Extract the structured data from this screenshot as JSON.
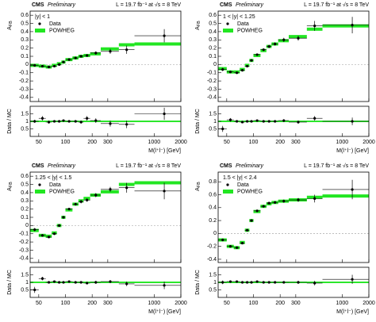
{
  "chart_data": [
    {
      "type": "afb",
      "header_bold": "CMS",
      "header_italic": "Preliminary",
      "lumi": "L = 19.7 fb⁻¹ at √s = 8 TeV",
      "region": "|y| < 1",
      "ylabel": [
        "A",
        "FB"
      ],
      "ratio_ylabel": "Data / MC",
      "xlabel": "M(l⁺l⁻) [GeV]",
      "log_x": true,
      "xlim": [
        40,
        2000
      ],
      "xticks": [
        50,
        100,
        200,
        300,
        1000,
        2000
      ],
      "ylim": [
        -0.45,
        0.65
      ],
      "yticks": [
        -0.4,
        -0.3,
        -0.2,
        -0.1,
        0,
        0.1,
        0.2,
        0.3,
        0.4,
        0.5,
        0.6
      ],
      "ratio_ylim": [
        0,
        2
      ],
      "ratio_yticks": [
        0.5,
        1,
        1.5
      ],
      "x": [
        45,
        55,
        65,
        75,
        85,
        95,
        110,
        130,
        150,
        175,
        220,
        320,
        490,
        1300
      ],
      "bins": [
        40,
        50,
        60,
        70,
        80,
        90,
        100,
        120,
        140,
        160,
        190,
        250,
        400,
        600,
        2000
      ],
      "series": [
        {
          "name": "Data",
          "color": "#000000",
          "values": [
            -0.01,
            -0.02,
            -0.03,
            -0.02,
            0.0,
            0.03,
            0.06,
            0.08,
            0.1,
            0.11,
            0.14,
            0.16,
            0.18,
            0.35
          ],
          "errors": [
            0.01,
            0.01,
            0.01,
            0.01,
            0.01,
            0.01,
            0.01,
            0.01,
            0.015,
            0.015,
            0.02,
            0.03,
            0.05,
            0.08
          ]
        },
        {
          "name": "POWHEG",
          "color": "#22e622",
          "values": [
            -0.01,
            -0.02,
            -0.03,
            -0.01,
            0.01,
            0.03,
            0.06,
            0.08,
            0.1,
            0.11,
            0.13,
            0.19,
            0.24,
            0.25
          ]
        }
      ],
      "ratio": {
        "values": [
          1.0,
          1.2,
          0.95,
          1.0,
          1.0,
          1.05,
          1.0,
          1.0,
          0.95,
          1.2,
          1.05,
          0.85,
          0.8,
          1.5
        ],
        "errors": [
          0.1,
          0.15,
          0.1,
          0.05,
          0.03,
          0.03,
          0.05,
          0.08,
          0.1,
          0.15,
          0.15,
          0.2,
          0.25,
          0.4
        ]
      }
    },
    {
      "type": "afb",
      "header_bold": "CMS",
      "header_italic": "Preliminary",
      "lumi": "L = 19.7 fb⁻¹ at √s = 8 TeV",
      "region": "1 < |y| < 1.25",
      "ylabel": [
        "A",
        "FB"
      ],
      "ratio_ylabel": "Data / MC",
      "xlabel": "M(l⁺l⁻) [GeV]",
      "log_x": true,
      "xlim": [
        40,
        2000
      ],
      "xticks": [
        50,
        100,
        200,
        300,
        1000,
        2000
      ],
      "ylim": [
        -0.45,
        0.65
      ],
      "yticks": [
        -0.4,
        -0.3,
        -0.2,
        -0.1,
        0,
        0.1,
        0.2,
        0.3,
        0.4,
        0.5,
        0.6
      ],
      "ratio_ylim": [
        0,
        2
      ],
      "ratio_yticks": [
        0.5,
        1,
        1.5
      ],
      "x": [
        45,
        55,
        65,
        75,
        85,
        95,
        110,
        130,
        150,
        175,
        220,
        320,
        490,
        1300
      ],
      "bins": [
        40,
        50,
        60,
        70,
        80,
        90,
        100,
        120,
        140,
        160,
        190,
        250,
        400,
        600,
        2000
      ],
      "series": [
        {
          "name": "Data",
          "color": "#000000",
          "values": [
            -0.06,
            -0.09,
            -0.1,
            -0.07,
            -0.02,
            0.05,
            0.12,
            0.18,
            0.22,
            0.25,
            0.3,
            0.32,
            0.47,
            0.48
          ],
          "errors": [
            0.02,
            0.015,
            0.01,
            0.01,
            0.01,
            0.01,
            0.01,
            0.015,
            0.02,
            0.02,
            0.025,
            0.03,
            0.06,
            0.1
          ]
        },
        {
          "name": "POWHEG",
          "color": "#22e622",
          "values": [
            -0.05,
            -0.09,
            -0.09,
            -0.06,
            -0.01,
            0.05,
            0.11,
            0.17,
            0.22,
            0.25,
            0.29,
            0.34,
            0.43,
            0.47
          ]
        }
      ],
      "ratio": {
        "values": [
          0.5,
          1.1,
          1.0,
          0.95,
          1.0,
          1.0,
          1.05,
          1.0,
          1.0,
          1.0,
          1.05,
          0.95,
          1.2,
          1.0
        ],
        "errors": [
          0.2,
          0.12,
          0.08,
          0.05,
          0.03,
          0.03,
          0.05,
          0.06,
          0.08,
          0.08,
          0.1,
          0.1,
          0.15,
          0.25
        ]
      }
    },
    {
      "type": "afb",
      "header_bold": "CMS",
      "header_italic": "Preliminary",
      "lumi": "L = 19.7 fb⁻¹ at √s = 8 TeV",
      "region": "1.25 < |y| < 1.5",
      "ylabel": [
        "A",
        "FB"
      ],
      "ratio_ylabel": "Data / MC",
      "xlabel": "M(l⁺l⁻) [GeV]",
      "log_x": true,
      "xlim": [
        40,
        2000
      ],
      "xticks": [
        50,
        100,
        200,
        300,
        1000,
        2000
      ],
      "ylim": [
        -0.45,
        0.65
      ],
      "yticks": [
        -0.4,
        -0.3,
        -0.2,
        -0.1,
        0,
        0.1,
        0.2,
        0.3,
        0.4,
        0.5,
        0.6
      ],
      "ratio_ylim": [
        0,
        2
      ],
      "ratio_yticks": [
        0.5,
        1,
        1.5
      ],
      "x": [
        45,
        55,
        65,
        75,
        85,
        95,
        110,
        130,
        150,
        175,
        220,
        320,
        490,
        1300
      ],
      "bins": [
        40,
        50,
        60,
        70,
        80,
        90,
        100,
        120,
        140,
        160,
        190,
        250,
        400,
        600,
        2000
      ],
      "series": [
        {
          "name": "Data",
          "color": "#000000",
          "values": [
            -0.05,
            -0.12,
            -0.14,
            -0.1,
            0.0,
            0.1,
            0.2,
            0.26,
            0.29,
            0.31,
            0.37,
            0.44,
            0.46,
            0.42
          ],
          "errors": [
            0.02,
            0.015,
            0.01,
            0.01,
            0.01,
            0.01,
            0.01,
            0.015,
            0.02,
            0.02,
            0.025,
            0.03,
            0.06,
            0.1
          ]
        },
        {
          "name": "POWHEG",
          "color": "#22e622",
          "values": [
            -0.06,
            -0.12,
            -0.13,
            -0.09,
            0.0,
            0.1,
            0.19,
            0.26,
            0.3,
            0.33,
            0.37,
            0.41,
            0.5,
            0.52
          ]
        }
      ],
      "ratio": {
        "values": [
          0.5,
          1.25,
          1.0,
          1.05,
          1.0,
          1.0,
          1.05,
          1.0,
          1.0,
          0.95,
          1.0,
          1.05,
          0.9,
          0.8
        ],
        "errors": [
          0.2,
          0.12,
          0.08,
          0.05,
          0.03,
          0.03,
          0.05,
          0.06,
          0.08,
          0.08,
          0.1,
          0.1,
          0.15,
          0.25
        ]
      }
    },
    {
      "type": "afb",
      "header_bold": "CMS",
      "header_italic": "Preliminary",
      "lumi": "L = 19.7 fb⁻¹ at √s = 8 TeV",
      "region": "1.5 < |y| < 2.4",
      "ylabel": [
        "A",
        "FB"
      ],
      "ratio_ylabel": "Data / MC",
      "xlabel": "M(l⁺l⁻) [GeV]",
      "log_x": true,
      "xlim": [
        40,
        2000
      ],
      "xticks": [
        50,
        100,
        200,
        300,
        1000,
        2000
      ],
      "ylim": [
        -0.45,
        0.95
      ],
      "yticks": [
        -0.4,
        -0.2,
        0,
        0.2,
        0.4,
        0.6,
        0.8
      ],
      "ratio_ylim": [
        0,
        2
      ],
      "ratio_yticks": [
        0.5,
        1,
        1.5
      ],
      "x": [
        45,
        55,
        65,
        75,
        85,
        95,
        110,
        130,
        150,
        175,
        220,
        320,
        490,
        1300
      ],
      "bins": [
        40,
        50,
        60,
        70,
        80,
        90,
        100,
        120,
        140,
        160,
        190,
        250,
        400,
        600,
        2000
      ],
      "series": [
        {
          "name": "Data",
          "color": "#000000",
          "values": [
            -0.1,
            -0.2,
            -0.22,
            -0.15,
            0.05,
            0.2,
            0.35,
            0.42,
            0.47,
            0.48,
            0.5,
            0.52,
            0.54,
            0.68
          ],
          "errors": [
            0.02,
            0.015,
            0.01,
            0.01,
            0.01,
            0.01,
            0.01,
            0.015,
            0.02,
            0.02,
            0.025,
            0.03,
            0.06,
            0.15
          ]
        },
        {
          "name": "POWHEG",
          "color": "#22e622",
          "values": [
            -0.1,
            -0.2,
            -0.22,
            -0.14,
            0.05,
            0.2,
            0.34,
            0.42,
            0.46,
            0.48,
            0.5,
            0.52,
            0.56,
            0.58
          ]
        }
      ],
      "ratio": {
        "values": [
          1.0,
          1.05,
          1.05,
          1.0,
          1.0,
          1.0,
          1.05,
          1.0,
          1.0,
          1.0,
          1.0,
          1.0,
          0.95,
          1.2
        ],
        "errors": [
          0.12,
          0.08,
          0.06,
          0.04,
          0.03,
          0.03,
          0.04,
          0.05,
          0.06,
          0.07,
          0.08,
          0.1,
          0.15,
          0.3
        ]
      }
    }
  ]
}
